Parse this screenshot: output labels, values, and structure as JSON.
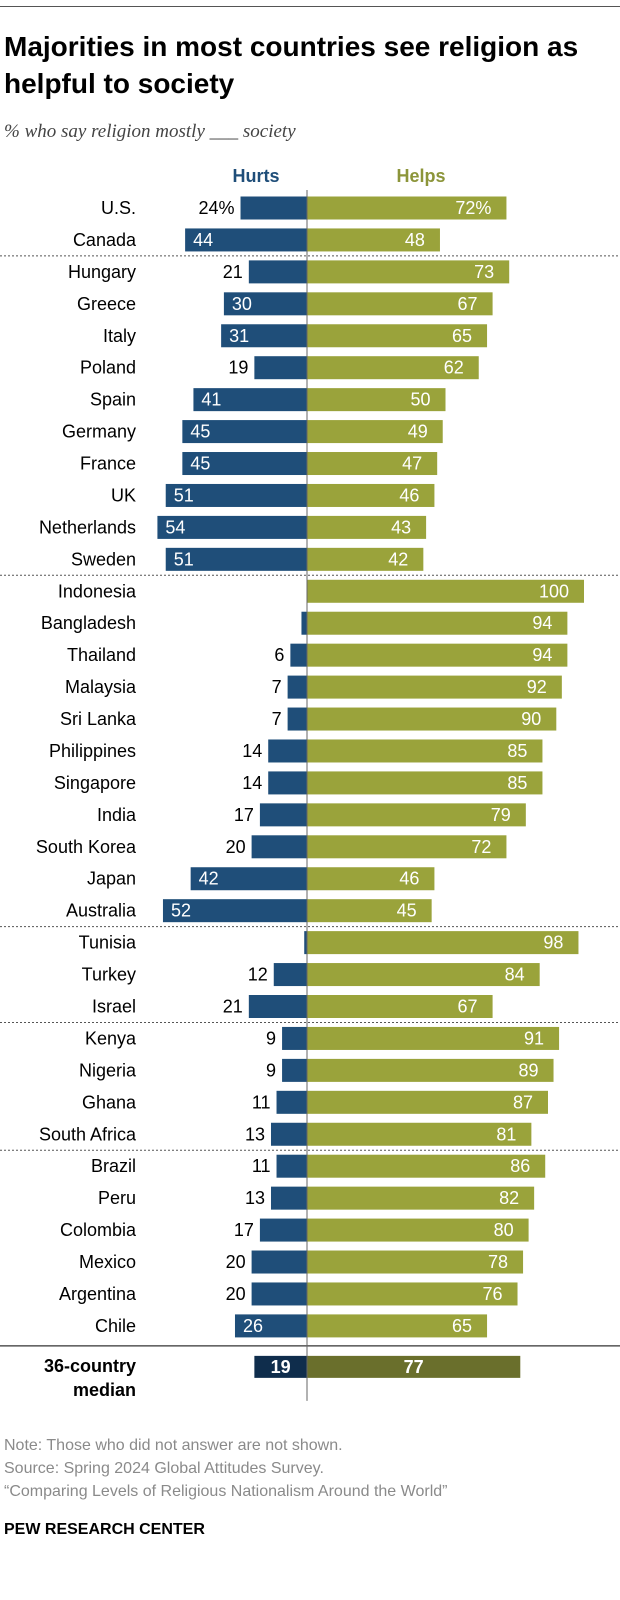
{
  "title": "Majorities in most countries see religion as helpful to society",
  "subtitle": "% who say religion mostly ___ society",
  "colors": {
    "hurts": "#1f4e79",
    "helps": "#9aa33b",
    "hurts_median": "#0f2d4c",
    "helps_median": "#6a6f2c",
    "hurts_header": "#1f4e79",
    "helps_header": "#8c953a",
    "divider": "#555555"
  },
  "chart_data": {
    "type": "bar",
    "orientation": "horizontal-diverging",
    "series": [
      {
        "name": "Hurts",
        "values": [
          24,
          44,
          21,
          30,
          31,
          19,
          41,
          45,
          45,
          51,
          54,
          51,
          0,
          2,
          6,
          7,
          7,
          14,
          14,
          17,
          20,
          42,
          52,
          1,
          12,
          21,
          9,
          9,
          11,
          13,
          11,
          13,
          17,
          20,
          20,
          26
        ]
      },
      {
        "name": "Helps",
        "values": [
          72,
          48,
          73,
          67,
          65,
          62,
          50,
          49,
          47,
          46,
          43,
          42,
          100,
          94,
          94,
          92,
          90,
          85,
          85,
          79,
          72,
          46,
          45,
          98,
          84,
          67,
          91,
          89,
          87,
          81,
          86,
          82,
          80,
          78,
          76,
          65
        ]
      }
    ],
    "categories": [
      "U.S.",
      "Canada",
      "Hungary",
      "Greece",
      "Italy",
      "Poland",
      "Spain",
      "Germany",
      "France",
      "UK",
      "Netherlands",
      "Sweden",
      "Indonesia",
      "Bangladesh",
      "Thailand",
      "Malaysia",
      "Sri Lanka",
      "Philippines",
      "Singapore",
      "India",
      "South Korea",
      "Japan",
      "Australia",
      "Tunisia",
      "Turkey",
      "Israel",
      "Kenya",
      "Nigeria",
      "Ghana",
      "South Africa",
      "Brazil",
      "Peru",
      "Colombia",
      "Mexico",
      "Argentina",
      "Chile"
    ],
    "hurts_labels": [
      "24%",
      "44",
      "21",
      "30",
      "31",
      "19",
      "41",
      "45",
      "45",
      "51",
      "54",
      "51",
      "",
      "",
      "6",
      "7",
      "7",
      "14",
      "14",
      "17",
      "20",
      "42",
      "52",
      "",
      "12",
      "21",
      "9",
      "9",
      "11",
      "13",
      "11",
      "13",
      "17",
      "20",
      "20",
      "26"
    ],
    "helps_labels": [
      "72%",
      "48",
      "73",
      "67",
      "65",
      "62",
      "50",
      "49",
      "47",
      "46",
      "43",
      "42",
      "100",
      "94",
      "94",
      "92",
      "90",
      "85",
      "85",
      "79",
      "72",
      "46",
      "45",
      "98",
      "84",
      "67",
      "91",
      "89",
      "87",
      "81",
      "86",
      "82",
      "80",
      "78",
      "76",
      "65"
    ],
    "groups": [
      2,
      10,
      11,
      3,
      4,
      6
    ],
    "median": {
      "label_line1": "36-country",
      "label_line2": "median",
      "hurts": 19,
      "helps": 77
    },
    "hurts_header": "Hurts",
    "helps_header": "Helps"
  },
  "notes": {
    "note": "Note: Those who did not answer are not shown.",
    "source": "Source: Spring 2024 Global Attitudes Survey.",
    "report": "“Comparing Levels of Religious Nationalism Around the World”"
  },
  "credit": "PEW RESEARCH CENTER"
}
